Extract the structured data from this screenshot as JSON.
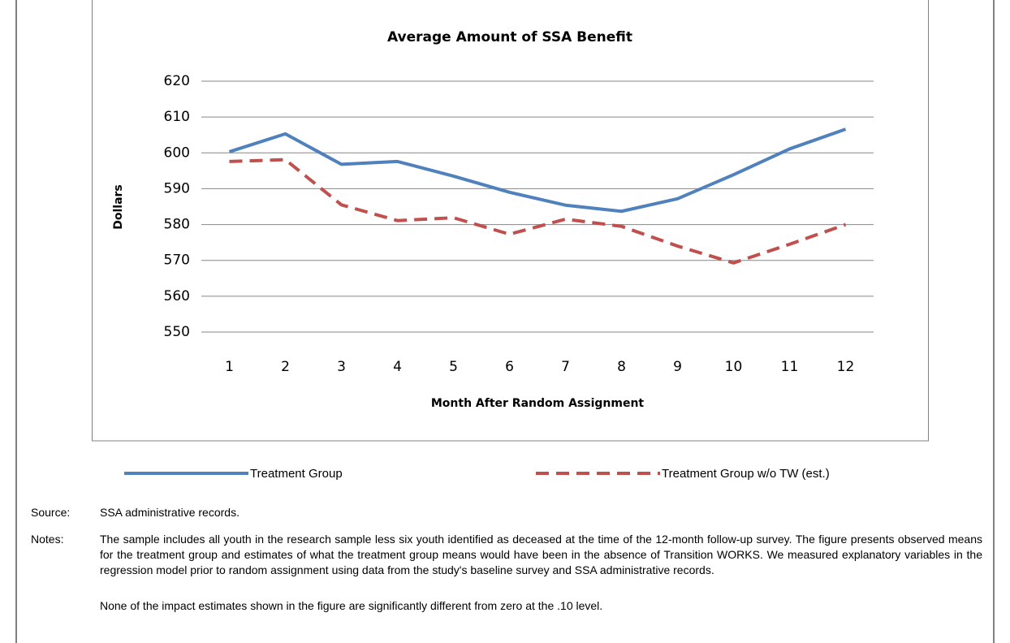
{
  "chart_data": {
    "type": "line",
    "title": "Average Amount of SSA Benefit",
    "x_label": "Month After Random Assignment",
    "y_label": "Dollars",
    "categories": [
      "1",
      "2",
      "3",
      "4",
      "5",
      "6",
      "7",
      "8",
      "9",
      "10",
      "11",
      "12"
    ],
    "series": [
      {
        "name": "Treatment Group",
        "color": "#4f81bd",
        "dash": false,
        "values": [
          600.3,
          605.3,
          596.8,
          597.6,
          593.5,
          589.0,
          585.4,
          583.7,
          587.2,
          593.9,
          601.1,
          606.6
        ]
      },
      {
        "name": "Treatment Group w/o TW (est.)",
        "color": "#c0504d",
        "dash": true,
        "values": [
          597.6,
          598.1,
          585.5,
          581.1,
          581.9,
          577.3,
          581.5,
          579.5,
          574.0,
          569.3,
          574.5,
          580.0
        ]
      }
    ],
    "ylim": [
      550,
      620
    ],
    "yticks": [
      550,
      560,
      570,
      580,
      590,
      600,
      610,
      620
    ],
    "grid": true
  },
  "source": {
    "label": "Source:",
    "text": "SSA administrative records."
  },
  "notes": {
    "label": "Notes:",
    "paragraphs": [
      "The sample includes all youth in the research sample less six youth identified as deceased at the time of the 12-month follow-up survey. The figure presents observed means for the treatment group and estimates of what the treatment group means would have been in the absence of Transition WORKS. We measured explanatory variables in the regression model prior to random assignment using data from the study's baseline survey and SSA administrative records.",
      "None of the impact estimates shown in the figure are significantly different from zero at the .10 level."
    ]
  }
}
